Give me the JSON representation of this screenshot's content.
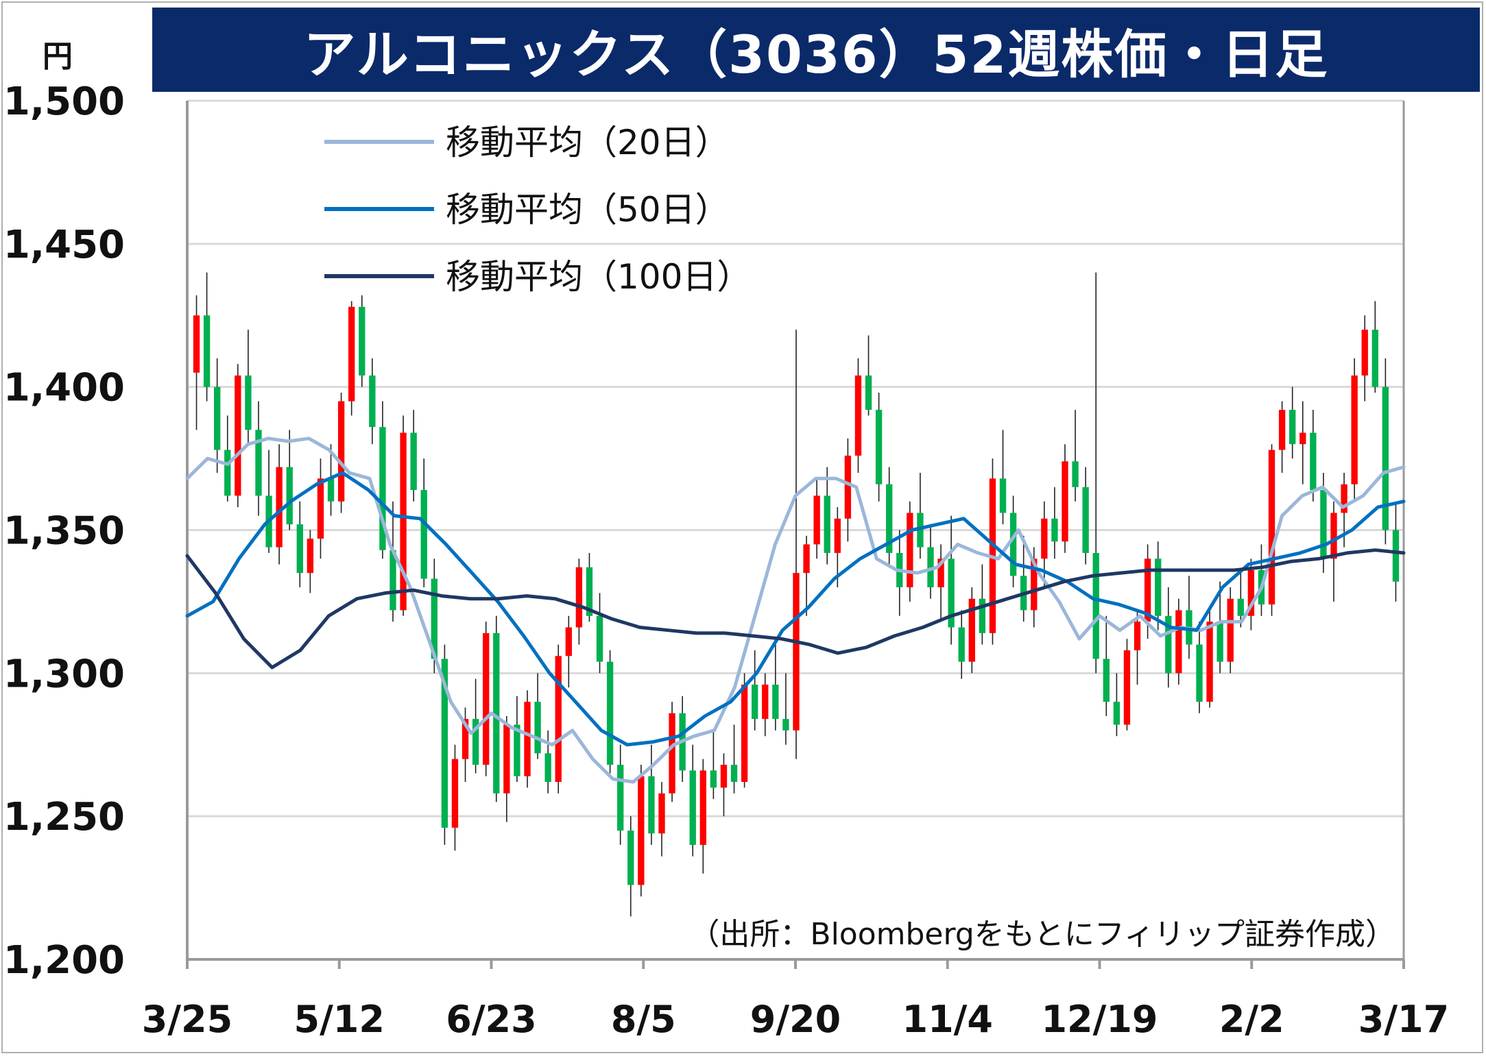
{
  "title": "アルコニックス（3036）52週株価・日足",
  "unit": "円",
  "source": "（出所：Bloombergをもとにフィリップ証券作成）",
  "colors": {
    "title_bg": "#0b2a6a",
    "up": "#ff0000",
    "down": "#00b050",
    "ma20": "#9bb7d9",
    "ma50": "#0070c0",
    "ma100": "#1f3864",
    "grid": "#d9d9d9"
  },
  "chart_data": {
    "type": "candlestick",
    "title": "アルコニックス（3036）52週株価・日足",
    "ylabel": "円",
    "ylim": [
      1200,
      1500
    ],
    "yticks": [
      1200,
      1250,
      1300,
      1350,
      1400,
      1450,
      1500
    ],
    "ytick_labels": [
      "1,200",
      "1,250",
      "1,300",
      "1,350",
      "1,400",
      "1,450",
      "1,500"
    ],
    "xtick_labels": [
      "3/25",
      "5/12",
      "6/23",
      "8/5",
      "9/20",
      "11/4",
      "12/19",
      "2/2",
      "3/17"
    ],
    "grid": true,
    "legend_position": "top-left",
    "series": [
      {
        "name": "移動平均（20日）",
        "color": "#9bb7d9",
        "values": [
          1368,
          1375,
          1373,
          1380,
          1382,
          1381,
          1382,
          1378,
          1370,
          1368,
          1345,
          1330,
          1310,
          1290,
          1279,
          1286,
          1281,
          1278,
          1275,
          1280,
          1270,
          1263,
          1262,
          1268,
          1275,
          1278,
          1280,
          1295,
          1320,
          1345,
          1362,
          1368,
          1368,
          1365,
          1340,
          1336,
          1335,
          1337,
          1345,
          1342,
          1340,
          1350,
          1335,
          1325,
          1312,
          1320,
          1315,
          1320,
          1313,
          1316,
          1315,
          1318,
          1318,
          1330,
          1355,
          1362,
          1365,
          1358,
          1362,
          1370,
          1372
        ]
      },
      {
        "name": "移動平均（50日）",
        "color": "#0070c0",
        "values": [
          1320,
          1325,
          1340,
          1352,
          1360,
          1366,
          1370,
          1364,
          1355,
          1354,
          1345,
          1335,
          1325,
          1313,
          1300,
          1290,
          1280,
          1275,
          1276,
          1278,
          1285,
          1290,
          1300,
          1315,
          1323,
          1333,
          1340,
          1345,
          1350,
          1352,
          1354,
          1346,
          1338,
          1336,
          1332,
          1326,
          1324,
          1321,
          1316,
          1315,
          1330,
          1338,
          1340,
          1342,
          1345,
          1350,
          1358,
          1360
        ]
      },
      {
        "name": "移動平均（100日）",
        "color": "#1f3864",
        "values": [
          1341,
          1328,
          1312,
          1302,
          1308,
          1320,
          1326,
          1328,
          1329,
          1327,
          1326,
          1326,
          1327,
          1326,
          1323,
          1319,
          1316,
          1315,
          1314,
          1314,
          1313,
          1312,
          1310,
          1307,
          1309,
          1313,
          1316,
          1320,
          1323,
          1326,
          1329,
          1332,
          1334,
          1335,
          1336,
          1336,
          1336,
          1336,
          1337,
          1339,
          1340,
          1342,
          1343,
          1342
        ]
      }
    ],
    "candles_ohlc": [
      [
        1405,
        1432,
        1385,
        1425
      ],
      [
        1425,
        1440,
        1395,
        1400
      ],
      [
        1400,
        1410,
        1370,
        1378
      ],
      [
        1378,
        1390,
        1360,
        1362
      ],
      [
        1362,
        1408,
        1358,
        1404
      ],
      [
        1404,
        1420,
        1380,
        1385
      ],
      [
        1385,
        1395,
        1355,
        1362
      ],
      [
        1362,
        1378,
        1342,
        1344
      ],
      [
        1344,
        1380,
        1338,
        1372
      ],
      [
        1372,
        1385,
        1350,
        1352
      ],
      [
        1352,
        1360,
        1330,
        1335
      ],
      [
        1335,
        1350,
        1328,
        1347
      ],
      [
        1347,
        1375,
        1340,
        1368
      ],
      [
        1368,
        1380,
        1355,
        1360
      ],
      [
        1360,
        1398,
        1356,
        1395
      ],
      [
        1395,
        1430,
        1390,
        1428
      ],
      [
        1428,
        1432,
        1400,
        1404
      ],
      [
        1404,
        1410,
        1380,
        1386
      ],
      [
        1386,
        1395,
        1340,
        1343
      ],
      [
        1343,
        1360,
        1318,
        1322
      ],
      [
        1322,
        1390,
        1320,
        1384
      ],
      [
        1384,
        1392,
        1360,
        1364
      ],
      [
        1364,
        1375,
        1330,
        1333
      ],
      [
        1333,
        1340,
        1300,
        1305
      ],
      [
        1305,
        1310,
        1240,
        1246
      ],
      [
        1246,
        1275,
        1238,
        1270
      ],
      [
        1270,
        1288,
        1262,
        1284
      ],
      [
        1284,
        1298,
        1265,
        1268
      ],
      [
        1268,
        1318,
        1264,
        1314
      ],
      [
        1314,
        1320,
        1255,
        1258
      ],
      [
        1258,
        1285,
        1248,
        1282
      ],
      [
        1282,
        1292,
        1262,
        1264
      ],
      [
        1264,
        1294,
        1260,
        1290
      ],
      [
        1290,
        1300,
        1270,
        1272
      ],
      [
        1272,
        1280,
        1258,
        1262
      ],
      [
        1262,
        1310,
        1258,
        1306
      ],
      [
        1306,
        1320,
        1295,
        1316
      ],
      [
        1316,
        1340,
        1310,
        1337
      ],
      [
        1337,
        1342,
        1318,
        1320
      ],
      [
        1320,
        1328,
        1300,
        1304
      ],
      [
        1304,
        1308,
        1265,
        1268
      ],
      [
        1268,
        1275,
        1240,
        1245
      ],
      [
        1245,
        1250,
        1215,
        1226
      ],
      [
        1226,
        1268,
        1222,
        1264
      ],
      [
        1264,
        1275,
        1240,
        1244
      ],
      [
        1244,
        1262,
        1236,
        1258
      ],
      [
        1258,
        1290,
        1255,
        1286
      ],
      [
        1286,
        1292,
        1262,
        1266
      ],
      [
        1266,
        1275,
        1236,
        1240
      ],
      [
        1240,
        1270,
        1230,
        1266
      ],
      [
        1266,
        1280,
        1256,
        1260
      ],
      [
        1260,
        1272,
        1250,
        1268
      ],
      [
        1268,
        1282,
        1258,
        1262
      ],
      [
        1262,
        1300,
        1260,
        1296
      ],
      [
        1296,
        1308,
        1280,
        1284
      ],
      [
        1284,
        1300,
        1278,
        1296
      ],
      [
        1296,
        1312,
        1280,
        1284
      ],
      [
        1284,
        1300,
        1275,
        1280
      ],
      [
        1280,
        1420,
        1270,
        1335
      ],
      [
        1335,
        1348,
        1320,
        1345
      ],
      [
        1345,
        1368,
        1340,
        1362
      ],
      [
        1362,
        1372,
        1338,
        1342
      ],
      [
        1342,
        1358,
        1330,
        1354
      ],
      [
        1354,
        1382,
        1346,
        1376
      ],
      [
        1376,
        1410,
        1370,
        1404
      ],
      [
        1404,
        1418,
        1390,
        1392
      ],
      [
        1392,
        1398,
        1360,
        1366
      ],
      [
        1366,
        1372,
        1338,
        1342
      ],
      [
        1342,
        1350,
        1320,
        1330
      ],
      [
        1330,
        1360,
        1325,
        1356
      ],
      [
        1356,
        1370,
        1340,
        1344
      ],
      [
        1344,
        1352,
        1326,
        1330
      ],
      [
        1330,
        1345,
        1318,
        1340
      ],
      [
        1340,
        1355,
        1310,
        1316
      ],
      [
        1316,
        1322,
        1298,
        1304
      ],
      [
        1304,
        1330,
        1300,
        1326
      ],
      [
        1326,
        1338,
        1310,
        1314
      ],
      [
        1314,
        1375,
        1310,
        1368
      ],
      [
        1368,
        1385,
        1352,
        1356
      ],
      [
        1356,
        1362,
        1330,
        1334
      ],
      [
        1334,
        1348,
        1318,
        1322
      ],
      [
        1322,
        1344,
        1316,
        1340
      ],
      [
        1340,
        1360,
        1330,
        1354
      ],
      [
        1354,
        1365,
        1340,
        1346
      ],
      [
        1346,
        1380,
        1342,
        1374
      ],
      [
        1374,
        1392,
        1360,
        1365
      ],
      [
        1365,
        1372,
        1338,
        1342
      ],
      [
        1342,
        1440,
        1300,
        1305
      ],
      [
        1305,
        1320,
        1285,
        1290
      ],
      [
        1290,
        1300,
        1278,
        1282
      ],
      [
        1282,
        1312,
        1280,
        1308
      ],
      [
        1308,
        1322,
        1296,
        1318
      ],
      [
        1318,
        1345,
        1312,
        1340
      ],
      [
        1340,
        1346,
        1315,
        1320
      ],
      [
        1320,
        1330,
        1295,
        1300
      ],
      [
        1300,
        1326,
        1296,
        1322
      ],
      [
        1322,
        1334,
        1305,
        1310
      ],
      [
        1310,
        1318,
        1286,
        1290
      ],
      [
        1290,
        1322,
        1288,
        1318
      ],
      [
        1318,
        1332,
        1300,
        1304
      ],
      [
        1304,
        1330,
        1300,
        1326
      ],
      [
        1326,
        1336,
        1316,
        1320
      ],
      [
        1320,
        1340,
        1315,
        1336
      ],
      [
        1336,
        1345,
        1320,
        1324
      ],
      [
        1324,
        1380,
        1320,
        1378
      ],
      [
        1378,
        1395,
        1370,
        1392
      ],
      [
        1392,
        1400,
        1375,
        1380
      ],
      [
        1380,
        1395,
        1366,
        1384
      ],
      [
        1384,
        1392,
        1360,
        1364
      ],
      [
        1364,
        1370,
        1335,
        1340
      ],
      [
        1340,
        1360,
        1325,
        1356
      ],
      [
        1356,
        1370,
        1344,
        1366
      ],
      [
        1366,
        1410,
        1360,
        1404
      ],
      [
        1404,
        1425,
        1395,
        1420
      ],
      [
        1420,
        1430,
        1398,
        1400
      ],
      [
        1400,
        1410,
        1345,
        1350
      ],
      [
        1350,
        1360,
        1325,
        1332
      ]
    ]
  },
  "legend": [
    {
      "label": "移動平均（20日）",
      "color": "#9bb7d9"
    },
    {
      "label": "移動平均（50日）",
      "color": "#0070c0"
    },
    {
      "label": "移動平均（100日）",
      "color": "#1f3864"
    }
  ]
}
